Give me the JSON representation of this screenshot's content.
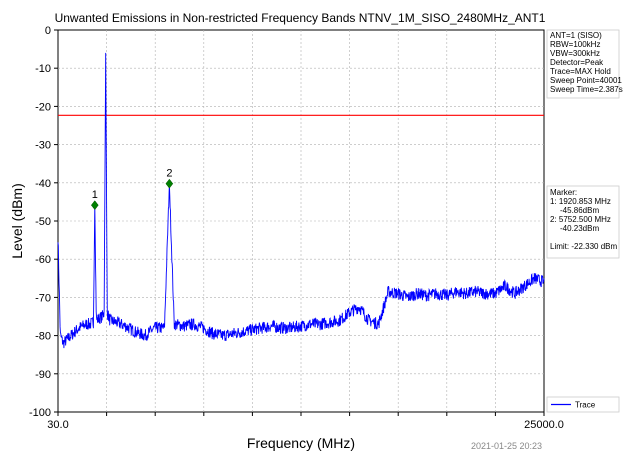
{
  "chart_data": {
    "type": "line",
    "title": "Unwanted Emissions in Non-restricted Frequency Bands NTNV_1M_SISO_2480MHz_ANT1",
    "xlabel": "Frequency (MHz)",
    "ylabel": "Level (dBm)",
    "xlim": [
      30.0,
      25000.0
    ],
    "ylim": [
      -100,
      0
    ],
    "x_tick_labels": [
      "30.0",
      "25000.0"
    ],
    "y_ticks": [
      0,
      -10,
      -20,
      -30,
      -40,
      -50,
      -60,
      -70,
      -80,
      -90,
      -100
    ],
    "grid": true,
    "limit_line": {
      "value": -22.33,
      "color": "#ff0000"
    },
    "series": [
      {
        "name": "Trace",
        "color": "#0000ff",
        "x": [
          30,
          150,
          300,
          500,
          700,
          900,
          1100,
          1300,
          1500,
          1700,
          1850,
          1920.853,
          2000,
          2150,
          2300,
          2400,
          2480,
          2560,
          2700,
          3000,
          3500,
          4000,
          4500,
          5000,
          5500,
          5752.5,
          6000,
          6500,
          7000,
          7500,
          8000,
          8500,
          9000,
          9500,
          10000,
          10500,
          11000,
          11500,
          12000,
          12500,
          13000,
          13500,
          14000,
          14500,
          15000,
          15500,
          16000,
          16500,
          17000,
          17500,
          18000,
          18500,
          19000,
          19500,
          20000,
          20500,
          21000,
          21500,
          22000,
          22500,
          23000,
          23500,
          24000,
          24500,
          25000
        ],
        "values": [
          -54,
          -80,
          -82,
          -81,
          -80,
          -79,
          -78,
          -77.5,
          -77,
          -77,
          -76.5,
          -45.86,
          -76,
          -75.5,
          -75,
          -74,
          -6,
          -74,
          -76,
          -76.5,
          -77.5,
          -79,
          -80,
          -78,
          -78,
          -40.23,
          -77,
          -77.5,
          -77,
          -78,
          -79.5,
          -80,
          -79.5,
          -79,
          -78.5,
          -78,
          -77.5,
          -78,
          -78,
          -77.5,
          -77,
          -77,
          -76.5,
          -76,
          -74,
          -72.5,
          -76,
          -77,
          -68.5,
          -69,
          -70,
          -69,
          -69.5,
          -69,
          -69.5,
          -68.5,
          -69,
          -68.5,
          -69,
          -69,
          -67,
          -69,
          -67,
          -65,
          -66
        ]
      }
    ],
    "markers": [
      {
        "label": "1",
        "x": 1920.853,
        "y": -45.86
      },
      {
        "label": "2",
        "x": 5752.5,
        "y": -40.23
      }
    ],
    "legend_placement": "bottom-right"
  },
  "settings_box": {
    "lines": [
      "ANT=1 (SISO)",
      "RBW=100kHz",
      "VBW=300kHz",
      "Detector=Peak",
      "Trace=MAX Hold",
      "Sweep Point=40001",
      "Sweep Time=2.387s"
    ]
  },
  "marker_box": {
    "lines": [
      "Marker:",
      "1: 1920.853 MHz",
      "-45.86dBm",
      "2: 5752.500 MHz",
      "-40.23dBm",
      "",
      "Limit: -22.330 dBm"
    ]
  },
  "legend": {
    "label": "Trace"
  },
  "timestamp": "2021-01-25 20:23",
  "colors": {
    "trace": "#0000ff",
    "limit": "#ff0000",
    "marker": "#008000",
    "grid": "#b0b0b0"
  }
}
